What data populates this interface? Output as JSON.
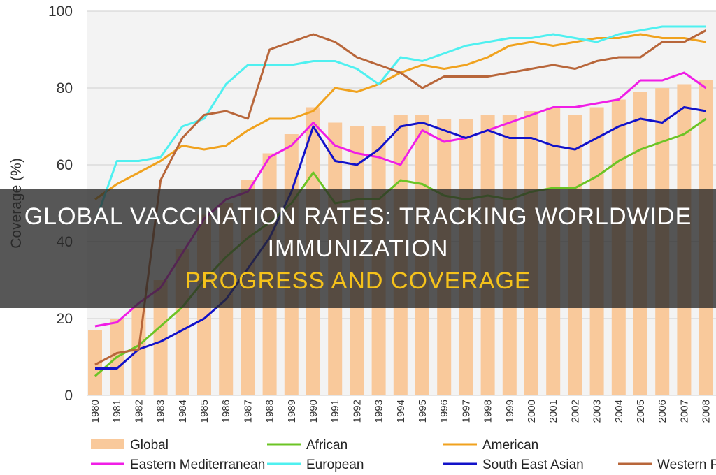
{
  "banner": {
    "line1": "GLOBAL VACCINATION RATES: TRACKING WORLDWIDE IMMUNIZATION",
    "line2": "PROGRESS AND COVERAGE",
    "line1_color": "#ffffff",
    "line2_color": "#f5c21b"
  },
  "chart_data": {
    "type": "bar+line",
    "title": "",
    "xlabel": "",
    "ylabel": "Coverage (%)",
    "ylim": [
      0,
      100
    ],
    "yticks": [
      0,
      20,
      40,
      60,
      80,
      100
    ],
    "grid": "horizontal",
    "legend_position": "bottom",
    "categories": [
      "1980",
      "1981",
      "1982",
      "1983",
      "1984",
      "1985",
      "1986",
      "1987",
      "1988",
      "1989",
      "1990",
      "1991",
      "1992",
      "1993",
      "1994",
      "1995",
      "1996",
      "1997",
      "1998",
      "1999",
      "2000",
      "2001",
      "2002",
      "2003",
      "2004",
      "2005",
      "2006",
      "2007",
      "2008"
    ],
    "bars": {
      "name": "Global",
      "color": "#f9c99b",
      "values": [
        17,
        20,
        23,
        30,
        38,
        47,
        50,
        56,
        63,
        68,
        75,
        71,
        70,
        70,
        73,
        73,
        72,
        72,
        73,
        73,
        74,
        75,
        73,
        75,
        77,
        79,
        80,
        81,
        82
      ]
    },
    "series": [
      {
        "name": "African",
        "color": "#6cc425",
        "values": [
          5,
          10,
          13,
          18,
          23,
          30,
          36,
          41,
          45,
          50,
          58,
          50,
          51,
          51,
          56,
          55,
          52,
          51,
          52,
          51,
          53,
          54,
          54,
          57,
          61,
          64,
          66,
          68,
          72
        ]
      },
      {
        "name": "American",
        "color": "#f0a21e",
        "values": [
          51,
          55,
          58,
          61,
          65,
          64,
          65,
          69,
          72,
          72,
          74,
          80,
          79,
          81,
          84,
          86,
          85,
          86,
          88,
          91,
          92,
          91,
          92,
          93,
          93,
          94,
          93,
          93,
          92
        ]
      },
      {
        "name": "Eastern Mediterranean",
        "color": "#f01ee6",
        "values": [
          18,
          19,
          24,
          28,
          37,
          46,
          51,
          53,
          62,
          65,
          71,
          65,
          63,
          62,
          60,
          69,
          66,
          67,
          69,
          71,
          73,
          75,
          75,
          76,
          77,
          82,
          82,
          84,
          80
        ]
      },
      {
        "name": "European",
        "color": "#4ff0f0",
        "values": [
          45,
          61,
          61,
          62,
          70,
          72,
          81,
          86,
          86,
          86,
          87,
          87,
          85,
          81,
          88,
          87,
          89,
          91,
          92,
          93,
          93,
          94,
          93,
          92,
          94,
          95,
          96,
          96,
          96
        ]
      },
      {
        "name": "South East Asian",
        "color": "#1212c9",
        "values": [
          7,
          7,
          12,
          14,
          17,
          20,
          25,
          33,
          41,
          53,
          70,
          61,
          60,
          64,
          70,
          71,
          69,
          67,
          69,
          67,
          67,
          65,
          64,
          67,
          70,
          72,
          71,
          75,
          74
        ]
      },
      {
        "name": "Western Pacific",
        "legend_label": "Western Pa",
        "color": "#b8663a",
        "values": [
          8,
          11,
          12,
          56,
          67,
          73,
          74,
          72,
          90,
          92,
          94,
          92,
          88,
          86,
          84,
          80,
          83,
          83,
          83,
          84,
          85,
          86,
          85,
          87,
          88,
          88,
          92,
          92,
          95
        ]
      }
    ]
  }
}
